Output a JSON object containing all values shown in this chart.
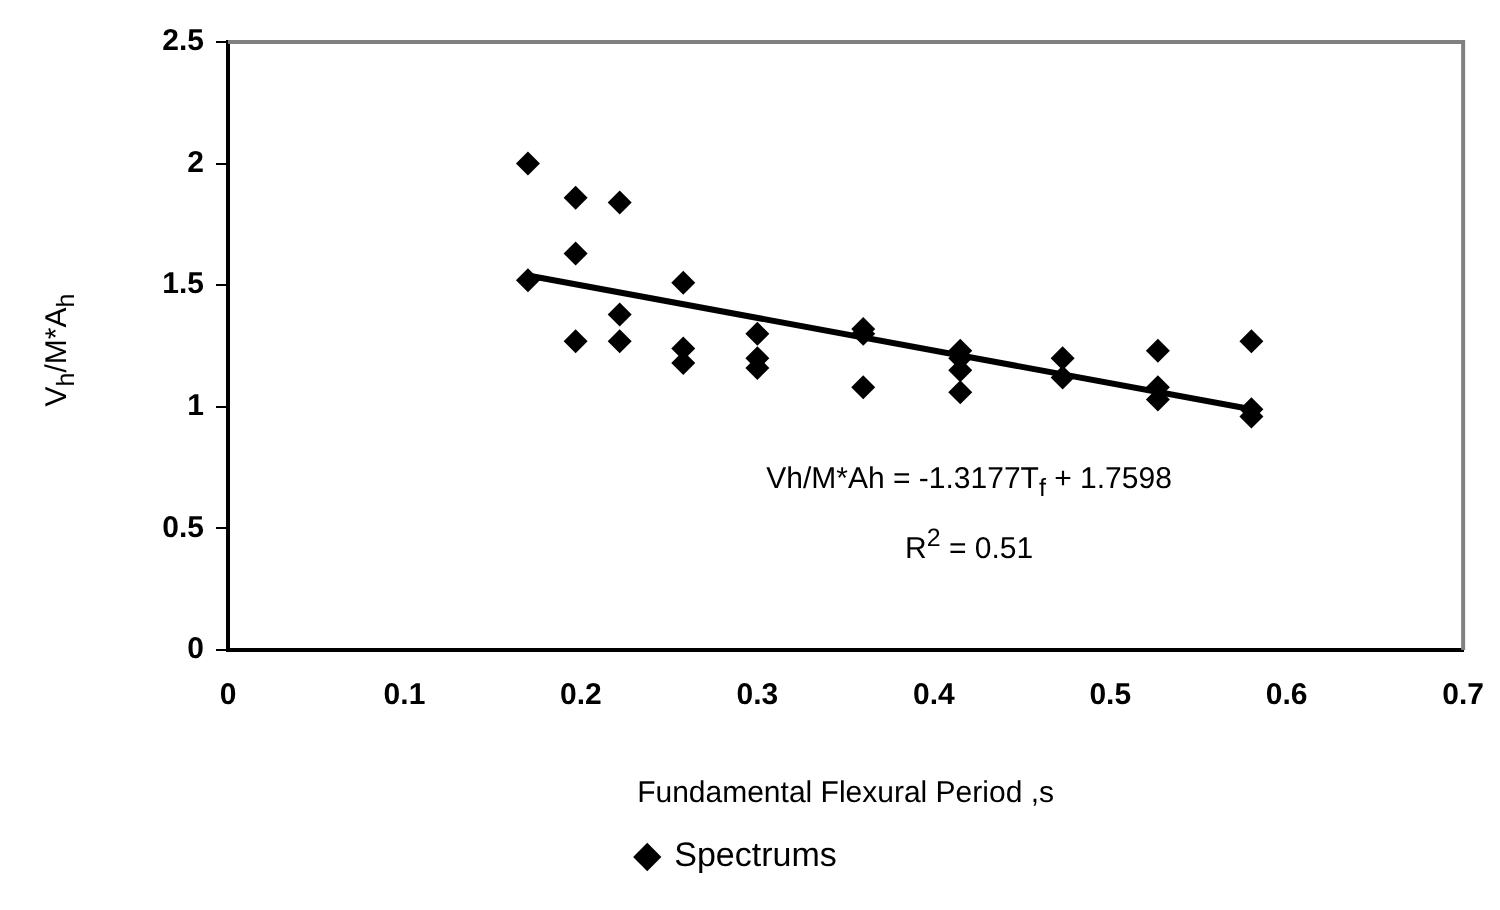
{
  "chart_data": {
    "type": "scatter",
    "xlabel": "Fundamental Flexural Period ,s",
    "ylabel": "V$_{h}$/M*A$_{h}$",
    "annotations": [
      "Vh/M*Ah = -1.3177T$_{f}$ + 1.7598",
      "R$^{2}$ = 0.51"
    ],
    "series": [
      {
        "name": "Spectrums",
        "color": "#000000",
        "marker": "diamond",
        "x": [
          0.17,
          0.17,
          0.197,
          0.197,
          0.197,
          0.222,
          0.222,
          0.222,
          0.258,
          0.258,
          0.258,
          0.3,
          0.3,
          0.3,
          0.36,
          0.36,
          0.36,
          0.415,
          0.415,
          0.415,
          0.415,
          0.473,
          0.473,
          0.527,
          0.527,
          0.527,
          0.58,
          0.58,
          0.58
        ],
        "values": [
          2.0,
          1.52,
          1.86,
          1.63,
          1.27,
          1.84,
          1.38,
          1.27,
          1.51,
          1.24,
          1.18,
          1.3,
          1.2,
          1.16,
          1.32,
          1.3,
          1.08,
          1.23,
          1.2,
          1.15,
          1.06,
          1.2,
          1.12,
          1.23,
          1.08,
          1.03,
          1.27,
          0.99,
          0.96
        ]
      },
      {
        "type": "line",
        "color": "#000000",
        "marker": "none",
        "x": [
          0.17,
          0.58
        ],
        "values": [
          1.54,
          0.99
        ]
      }
    ],
    "xlim": [
      0,
      0.7
    ],
    "xticks": [
      0,
      0.1,
      0.2,
      0.3,
      0.4,
      0.5,
      0.6,
      0.7
    ],
    "ylim": [
      0,
      2.5
    ],
    "yticks": [
      0,
      0.5,
      1,
      1.5,
      2,
      2.5
    ],
    "grid": false,
    "legend": "bottom"
  }
}
